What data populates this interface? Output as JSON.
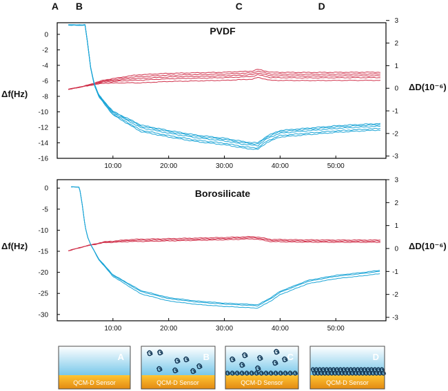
{
  "phase_letters": [
    "A",
    "B",
    "C",
    "D"
  ],
  "stages": [
    {
      "letter": "A",
      "sensor_label": "QCM-D Sensor"
    },
    {
      "letter": "B",
      "sensor_label": "QCM-D Sensor"
    },
    {
      "letter": "C",
      "sensor_label": "QCM-D Sensor"
    },
    {
      "letter": "D",
      "sensor_label": "QCM-D Sensor"
    }
  ],
  "colors": {
    "frequency": "#1aa4d6",
    "dissipation": "#d0304a",
    "sky_top": "#ffffff",
    "sky_bottom": "#79c8ea",
    "sensor_top": "#ffc533",
    "sensor_bottom": "#e38a12",
    "particle": "#1a3e5c"
  },
  "chart_data": [
    {
      "type": "line",
      "title": "PVDF",
      "xlabel": "",
      "ylabel": "Δf(Hz)",
      "y2label": "ΔD(10⁻⁶)",
      "xlim": [
        0,
        3540
      ],
      "ylim": [
        -16,
        1.5
      ],
      "y2lim": [
        -3.1,
        2.9
      ],
      "x_ticks": [
        600,
        1200,
        1800,
        2400,
        3000
      ],
      "x_tick_labels": [
        "10:00",
        "20:00",
        "30:00",
        "40:00",
        "50:00"
      ],
      "y_ticks": [
        0,
        -2,
        -4,
        -6,
        -8,
        -10,
        -12,
        -14,
        -16
      ],
      "y2_ticks": [
        3,
        2,
        1,
        0,
        -1,
        -2,
        -3
      ],
      "phase_x": [
        -60,
        200,
        1920,
        2810
      ],
      "frequency_points": [
        [
          120,
          1.2
        ],
        [
          300,
          1.2
        ],
        [
          320,
          -0.5
        ],
        [
          360,
          -4.3
        ],
        [
          400,
          -6.5
        ],
        [
          450,
          -8.0
        ],
        [
          600,
          -10.2
        ],
        [
          900,
          -12.2
        ],
        [
          1200,
          -12.9
        ],
        [
          1500,
          -13.5
        ],
        [
          1800,
          -13.9
        ],
        [
          2040,
          -14.4
        ],
        [
          2160,
          -14.5
        ],
        [
          2260,
          -13.6
        ],
        [
          2400,
          -12.9
        ],
        [
          2700,
          -12.6
        ],
        [
          3000,
          -12.3
        ],
        [
          3300,
          -12.1
        ],
        [
          3480,
          -12.0
        ]
      ],
      "frequency_offsets": [
        0.15,
        -0.15,
        0.35,
        -0.35,
        0.5
      ],
      "dissipation_points": [
        [
          120,
          -0.05
        ],
        [
          300,
          0.1
        ],
        [
          500,
          0.3
        ],
        [
          800,
          0.42
        ],
        [
          1200,
          0.5
        ],
        [
          1800,
          0.55
        ],
        [
          2100,
          0.6
        ],
        [
          2160,
          0.68
        ],
        [
          2300,
          0.55
        ],
        [
          2700,
          0.54
        ],
        [
          3300,
          0.55
        ],
        [
          3480,
          0.55
        ]
      ],
      "dissipation_offsets": [
        0.0,
        0.08,
        -0.08,
        0.16,
        -0.2
      ]
    },
    {
      "type": "line",
      "title": "Borosilicate",
      "xlabel": "",
      "ylabel": "Δf(Hz)",
      "y2label": "ΔD(10⁻⁶)",
      "xlim": [
        0,
        3540
      ],
      "ylim": [
        -31.5,
        2
      ],
      "y2lim": [
        -3.15,
        3.0
      ],
      "x_ticks": [
        600,
        1200,
        1800,
        2400,
        3000
      ],
      "x_tick_labels": [
        "10:00",
        "20:00",
        "30:00",
        "40:00",
        "50:00"
      ],
      "y_ticks": [
        0,
        -5,
        -10,
        -15,
        -20,
        -25,
        -30
      ],
      "y2_ticks": [
        3,
        2,
        1,
        0,
        -1,
        -2,
        -3
      ],
      "frequency_points": [
        [
          150,
          0.3
        ],
        [
          240,
          0.2
        ],
        [
          270,
          -4.0
        ],
        [
          300,
          -9.0
        ],
        [
          330,
          -11.8
        ],
        [
          360,
          -13.4
        ],
        [
          450,
          -17.0
        ],
        [
          600,
          -20.8
        ],
        [
          900,
          -24.8
        ],
        [
          1200,
          -26.5
        ],
        [
          1500,
          -27.3
        ],
        [
          1800,
          -27.8
        ],
        [
          2000,
          -28.0
        ],
        [
          2160,
          -28.2
        ],
        [
          2300,
          -26.5
        ],
        [
          2400,
          -25.0
        ],
        [
          2700,
          -22.4
        ],
        [
          3000,
          -21.2
        ],
        [
          3300,
          -20.5
        ],
        [
          3480,
          -20.0
        ]
      ],
      "frequency_offsets": [
        0.25,
        -0.3,
        0.5
      ],
      "dissipation_points": [
        [
          120,
          -0.1
        ],
        [
          300,
          0.1
        ],
        [
          500,
          0.27
        ],
        [
          800,
          0.35
        ],
        [
          1200,
          0.38
        ],
        [
          1800,
          0.43
        ],
        [
          2100,
          0.47
        ],
        [
          2160,
          0.45
        ],
        [
          2300,
          0.35
        ],
        [
          2600,
          0.33
        ],
        [
          3000,
          0.32
        ],
        [
          3480,
          0.32
        ]
      ],
      "dissipation_offsets": [
        0.0,
        0.05,
        -0.05
      ]
    }
  ]
}
